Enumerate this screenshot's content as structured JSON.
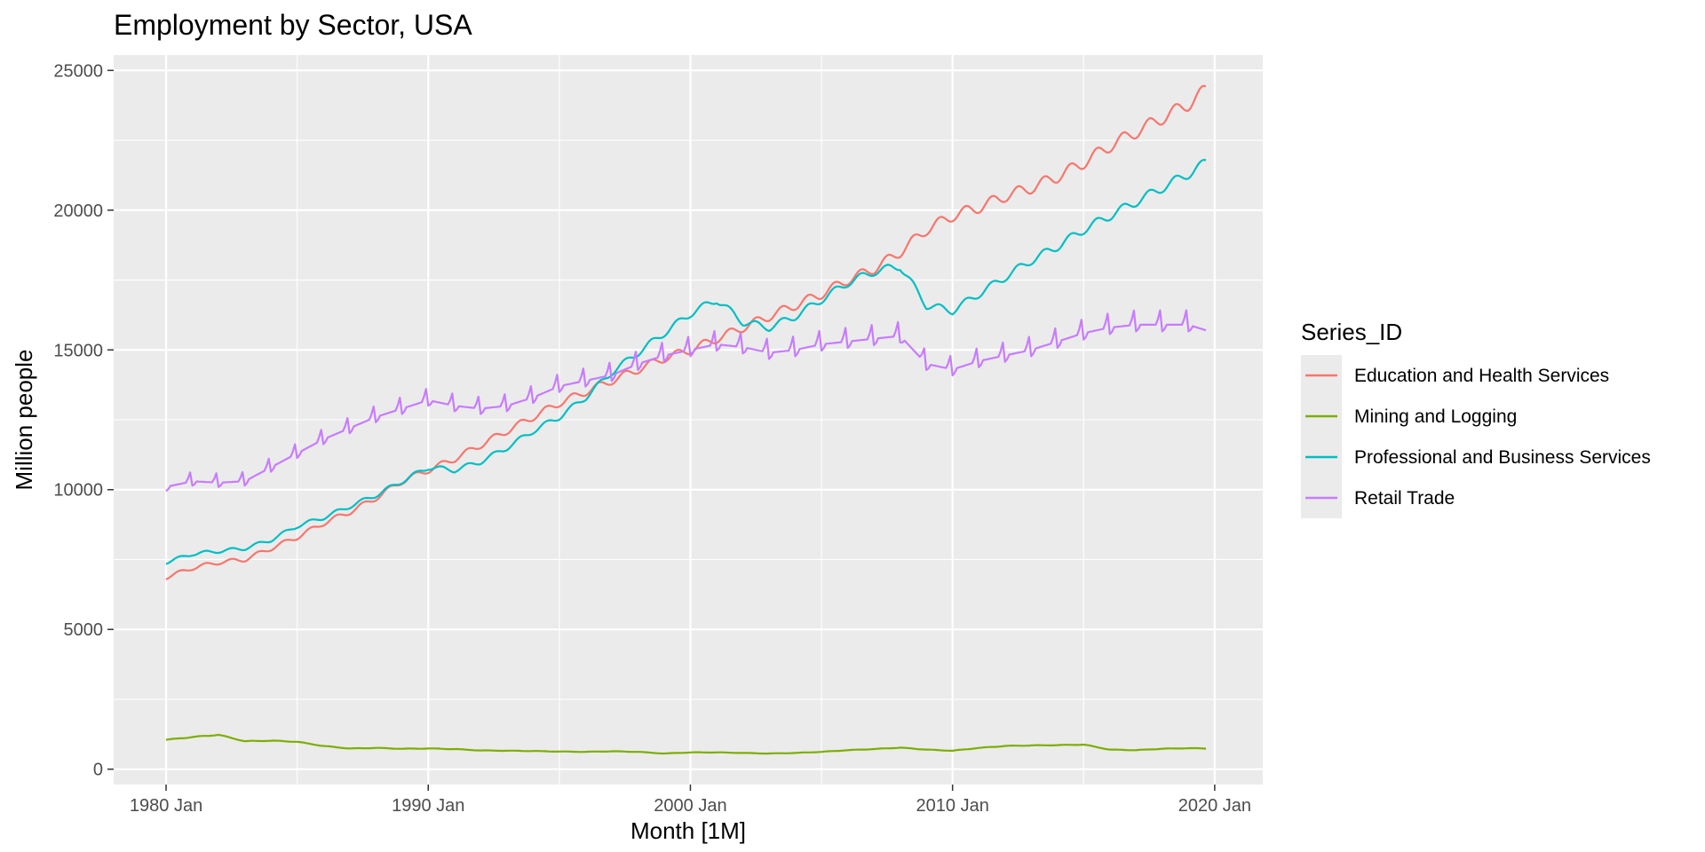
{
  "chart_data": {
    "type": "line",
    "title": "Employment by Sector, USA",
    "xlabel": "Month [1M]",
    "ylabel": "Million people",
    "x_ticks": [
      "1980 Jan",
      "1990 Jan",
      "2000 Jan",
      "2010 Jan",
      "2020 Jan"
    ],
    "y_ticks": [
      "0",
      "5000",
      "10000",
      "15000",
      "20000",
      "25000"
    ],
    "xlim": [
      "1978-01",
      "2021-11"
    ],
    "ylim": [
      -550,
      25550
    ],
    "grid": true,
    "legend": {
      "title": "Series_ID",
      "position": "right"
    },
    "x_start": "1980-01",
    "series": [
      {
        "name": "Education and Health Services",
        "color": "#F8766D",
        "x": [
          "1980-01",
          "1981-01",
          "1982-01",
          "1983-01",
          "1984-01",
          "1985-01",
          "1986-01",
          "1987-01",
          "1988-01",
          "1989-01",
          "1990-01",
          "1991-01",
          "1992-01",
          "1993-01",
          "1994-01",
          "1995-01",
          "1996-01",
          "1997-01",
          "1998-01",
          "1999-01",
          "2000-01",
          "2001-01",
          "2002-01",
          "2003-01",
          "2004-01",
          "2005-01",
          "2006-01",
          "2007-01",
          "2008-01",
          "2009-01",
          "2010-01",
          "2011-01",
          "2012-01",
          "2013-01",
          "2014-01",
          "2015-01",
          "2016-01",
          "2017-01",
          "2018-01",
          "2019-01",
          "2019-09"
        ],
        "values": [
          6860,
          7200,
          7400,
          7500,
          7900,
          8300,
          8800,
          9200,
          9700,
          10300,
          10700,
          11100,
          11600,
          12100,
          12600,
          13100,
          13500,
          13900,
          14300,
          14700,
          15000,
          15400,
          15800,
          16200,
          16600,
          17000,
          17500,
          17900,
          18500,
          19300,
          19800,
          20100,
          20500,
          20800,
          21200,
          21700,
          22300,
          22800,
          23300,
          23800,
          24300
        ]
      },
      {
        "name": "Mining and Logging",
        "color": "#7CAE00",
        "x": [
          "1980-01",
          "1981-01",
          "1982-01",
          "1983-01",
          "1984-01",
          "1985-01",
          "1986-01",
          "1987-01",
          "1988-01",
          "1989-01",
          "1990-01",
          "1991-01",
          "1992-01",
          "1993-01",
          "1994-01",
          "1995-01",
          "1996-01",
          "1997-01",
          "1998-01",
          "1999-01",
          "2000-01",
          "2001-01",
          "2002-01",
          "2003-01",
          "2004-01",
          "2005-01",
          "2006-01",
          "2007-01",
          "2008-01",
          "2009-01",
          "2010-01",
          "2011-01",
          "2012-01",
          "2013-01",
          "2014-01",
          "2015-01",
          "2016-01",
          "2017-01",
          "2018-01",
          "2019-01",
          "2019-09"
        ],
        "values": [
          1050,
          1150,
          1230,
          1000,
          1020,
          980,
          830,
          740,
          760,
          730,
          740,
          720,
          670,
          660,
          650,
          630,
          620,
          640,
          620,
          560,
          600,
          600,
          580,
          560,
          580,
          620,
          680,
          720,
          770,
          700,
          660,
          760,
          830,
          850,
          860,
          880,
          700,
          680,
          730,
          750,
          740
        ]
      },
      {
        "name": "Professional and Business Services",
        "color": "#00BFC4",
        "x": [
          "1980-01",
          "1981-01",
          "1982-01",
          "1983-01",
          "1984-01",
          "1985-01",
          "1986-01",
          "1987-01",
          "1988-01",
          "1989-01",
          "1990-01",
          "1991-01",
          "1992-01",
          "1993-01",
          "1994-01",
          "1995-01",
          "1996-01",
          "1997-01",
          "1998-01",
          "1999-01",
          "2000-01",
          "2001-01",
          "2002-01",
          "2003-01",
          "2004-01",
          "2005-01",
          "2006-01",
          "2007-01",
          "2008-01",
          "2009-01",
          "2010-01",
          "2011-01",
          "2012-01",
          "2013-01",
          "2014-01",
          "2015-01",
          "2016-01",
          "2017-01",
          "2018-01",
          "2019-01",
          "2019-09"
        ],
        "values": [
          7400,
          7700,
          7800,
          7900,
          8200,
          8700,
          9000,
          9400,
          9800,
          10300,
          10800,
          10700,
          11000,
          11500,
          12100,
          12600,
          13300,
          14200,
          14900,
          15600,
          16300,
          16800,
          16000,
          15800,
          16200,
          16800,
          17400,
          17800,
          18000,
          16600,
          16400,
          17000,
          17600,
          18200,
          18700,
          19300,
          19800,
          20300,
          20800,
          21300,
          21700
        ]
      },
      {
        "name": "Retail Trade",
        "color": "#C77CFF",
        "x": [
          "1980-01",
          "1981-01",
          "1982-01",
          "1983-01",
          "1984-01",
          "1985-01",
          "1986-01",
          "1987-01",
          "1988-01",
          "1989-01",
          "1990-01",
          "1991-01",
          "1992-01",
          "1993-01",
          "1994-01",
          "1995-01",
          "1996-01",
          "1997-01",
          "1998-01",
          "1999-01",
          "2000-01",
          "2001-01",
          "2002-01",
          "2003-01",
          "2004-01",
          "2005-01",
          "2006-01",
          "2007-01",
          "2008-01",
          "2009-01",
          "2010-01",
          "2011-01",
          "2012-01",
          "2013-01",
          "2014-01",
          "2015-01",
          "2016-01",
          "2017-01",
          "2018-01",
          "2019-01",
          "2019-09"
        ],
        "values": [
          10100,
          10300,
          10250,
          10300,
          10800,
          11300,
          11800,
          12200,
          12600,
          12900,
          13200,
          13000,
          12900,
          13000,
          13300,
          13700,
          13900,
          14100,
          14500,
          14800,
          15000,
          15200,
          15100,
          14900,
          15000,
          15200,
          15300,
          15400,
          15500,
          14500,
          14300,
          14600,
          14800,
          15000,
          15300,
          15600,
          15800,
          15900,
          15900,
          15900,
          15700
        ]
      }
    ]
  }
}
